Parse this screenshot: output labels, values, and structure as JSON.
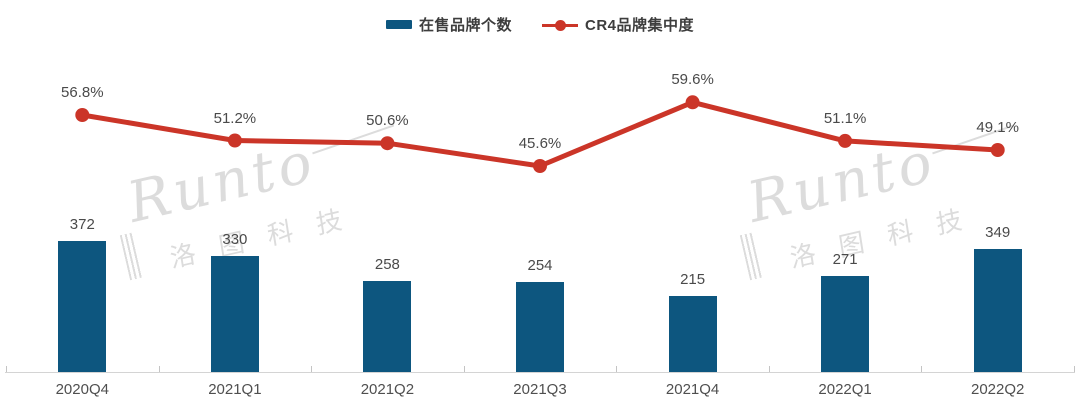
{
  "legend": {
    "bar_label": "在售品牌个数",
    "line_label": "CR4品牌集中度"
  },
  "watermark": {
    "brand": "Runto",
    "cn": "洛图科技"
  },
  "colors": {
    "bar": "#0D567F",
    "line": "#CB3528",
    "label": "#4A4A4A",
    "axis": "#D4D4D4",
    "watermark": "#DCDCDC"
  },
  "chart_data": {
    "type": "bar+line",
    "categories": [
      "2020Q4",
      "2021Q1",
      "2021Q2",
      "2021Q3",
      "2021Q4",
      "2022Q1",
      "2022Q2"
    ],
    "series": [
      {
        "name": "在售品牌个数",
        "type": "bar",
        "color": "#0D567F",
        "values": [
          372,
          330,
          258,
          254,
          215,
          271,
          349
        ],
        "labels": [
          "372",
          "330",
          "258",
          "254",
          "215",
          "271",
          "349"
        ]
      },
      {
        "name": "CR4品牌集中度",
        "type": "line",
        "color": "#CB3528",
        "unit": "%",
        "values": [
          56.8,
          51.2,
          50.6,
          45.6,
          59.6,
          51.1,
          49.1
        ],
        "labels": [
          "56.8%",
          "51.2%",
          "50.6%",
          "45.6%",
          "59.6%",
          "51.1%",
          "49.1%"
        ]
      }
    ],
    "legend_position": "top",
    "grid": false,
    "data_labels": true,
    "x_axis": {
      "line": true,
      "ticks": true
    },
    "y_axis": {
      "visible": false
    }
  }
}
